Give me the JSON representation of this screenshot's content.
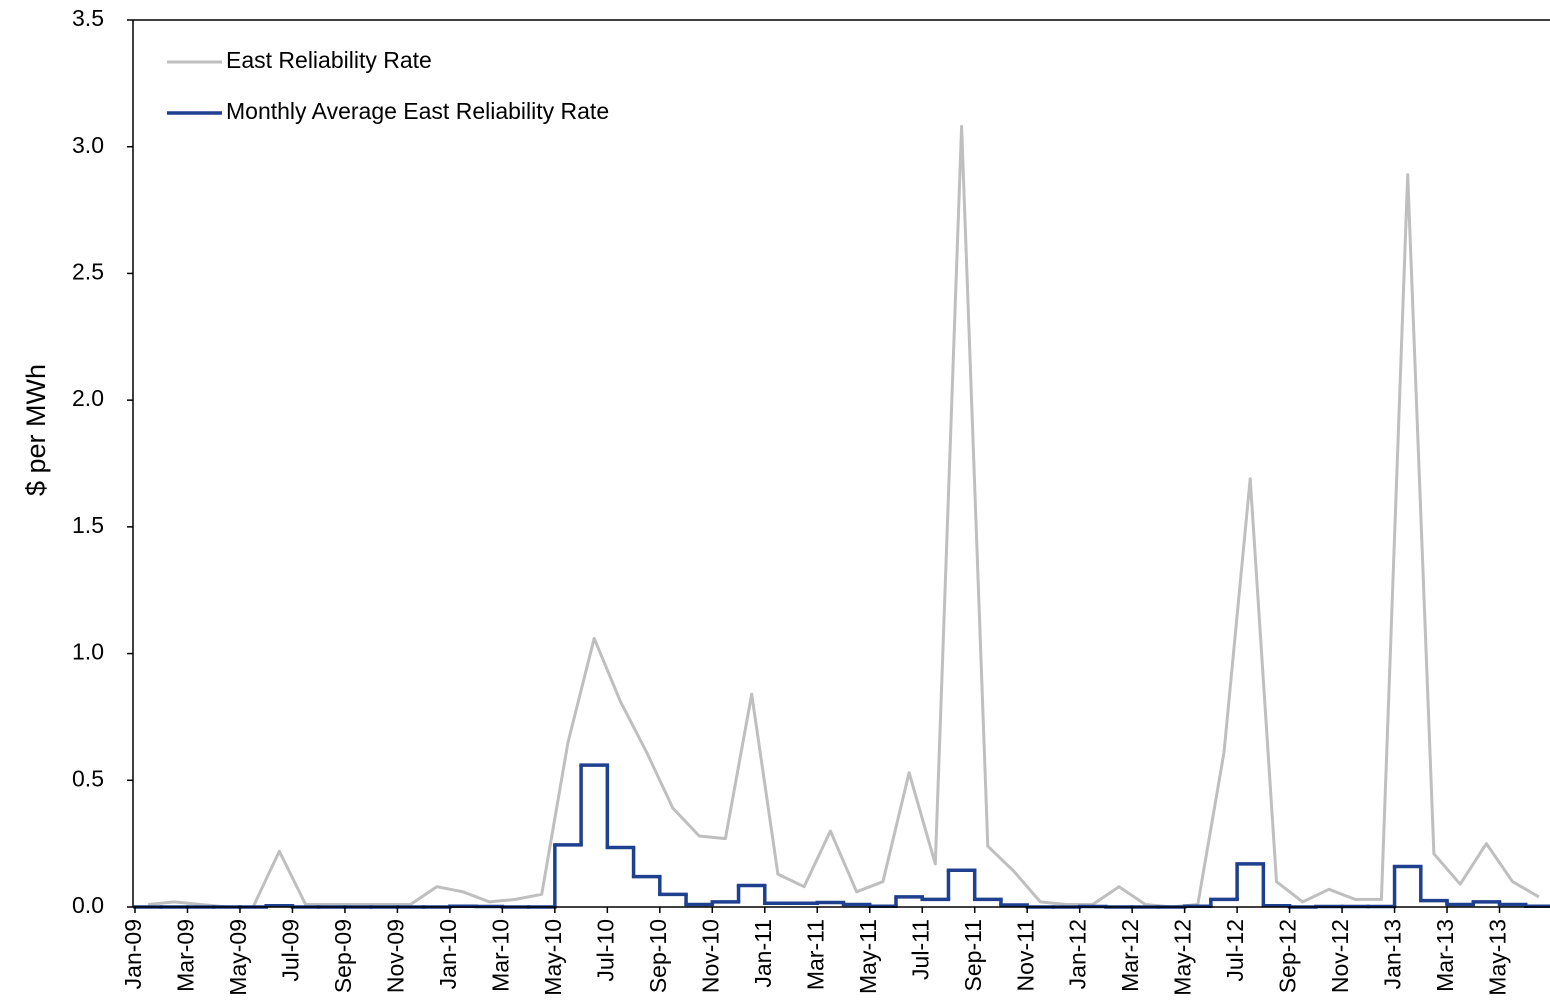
{
  "chart_data": {
    "type": "line",
    "y_label": "$ per MWh",
    "categories": [
      "Jan-09",
      null,
      "Mar-09",
      null,
      "May-09",
      null,
      "Jul-09",
      null,
      "Sep-09",
      null,
      "Nov-09",
      null,
      "Jan-10",
      null,
      "Mar-10",
      null,
      "May-10",
      null,
      "Jul-10",
      null,
      "Sep-10",
      null,
      "Nov-10",
      null,
      "Jan-11",
      null,
      "Mar-11",
      null,
      "May-11",
      null,
      "Jul-11",
      null,
      "Sep-11",
      null,
      "Nov-11",
      null,
      "Jan-12",
      null,
      "Mar-12",
      null,
      "May-12",
      null,
      "Jul-12",
      null,
      "Sep-12",
      null,
      "Nov-12",
      null,
      "Jan-13",
      null,
      "Mar-13",
      null,
      "May-13",
      null
    ],
    "series": [
      {
        "name": "East Reliability Rate",
        "color": "#bfbfbf",
        "values": [
          0.01,
          0.02,
          0.01,
          0,
          0,
          0.22,
          0.01,
          0.01,
          0.01,
          0.01,
          0.01,
          0.08,
          0.06,
          0.02,
          0.03,
          0.05,
          0.65,
          1.06,
          0.81,
          0.61,
          0.39,
          0.28,
          0.27,
          0.84,
          0.13,
          0.08,
          0.3,
          0.06,
          0.1,
          0.53,
          0.17,
          3.08,
          0.24,
          0.14,
          0.02,
          0.01,
          0.01,
          0.08,
          0.01,
          0,
          0.01,
          0.61,
          1.69,
          0.1,
          0.02,
          0.07,
          0.03,
          0.03,
          2.89,
          0.21,
          0.09,
          0.25,
          0.1,
          0.04
        ]
      },
      {
        "name": "Monthly Average East Reliability Rate",
        "color": "#1f3f8f",
        "step": true,
        "values": [
          0,
          0,
          0,
          0,
          0,
          0.005,
          0,
          0,
          0,
          0,
          0,
          0,
          0.003,
          0.002,
          0,
          0,
          0.245,
          0.56,
          0.235,
          0.12,
          0.05,
          0.01,
          0.02,
          0.085,
          0.015,
          0.015,
          0.018,
          0.01,
          0.003,
          0.04,
          0.03,
          0.145,
          0.03,
          0.008,
          0,
          0,
          0.002,
          0,
          0,
          0,
          0.003,
          0.03,
          0.17,
          0.005,
          0,
          0.002,
          0.002,
          0.002,
          0.16,
          0.025,
          0.01,
          0.02,
          0.01,
          0.003
        ]
      }
    ],
    "ylim": [
      0,
      3.5
    ],
    "yticks": [
      {
        "value": 0,
        "label": "0.0"
      },
      0.5,
      {
        "value": 1,
        "label": "1.0"
      },
      1.5,
      {
        "value": 2,
        "label": "2.0"
      },
      2.5,
      {
        "value": 3,
        "label": "3.0"
      },
      3.5
    ],
    "grid": false,
    "legend": "upper left"
  }
}
